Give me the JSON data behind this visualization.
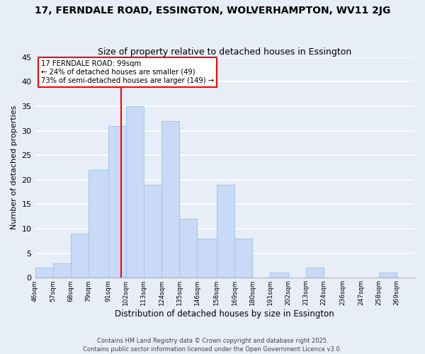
{
  "title_line1": "17, FERNDALE ROAD, ESSINGTON, WOLVERHAMPTON, WV11 2JG",
  "title_line2": "Size of property relative to detached houses in Essington",
  "xlabel": "Distribution of detached houses by size in Essington",
  "ylabel": "Number of detached properties",
  "bin_labels": [
    "46sqm",
    "57sqm",
    "68sqm",
    "79sqm",
    "91sqm",
    "102sqm",
    "113sqm",
    "124sqm",
    "135sqm",
    "146sqm",
    "158sqm",
    "169sqm",
    "180sqm",
    "191sqm",
    "202sqm",
    "213sqm",
    "224sqm",
    "236sqm",
    "247sqm",
    "258sqm",
    "269sqm"
  ],
  "bin_edges": [
    46,
    57,
    68,
    79,
    91,
    102,
    113,
    124,
    135,
    146,
    158,
    169,
    180,
    191,
    202,
    213,
    224,
    236,
    247,
    258,
    269,
    280
  ],
  "counts": [
    2,
    3,
    9,
    22,
    31,
    35,
    19,
    32,
    12,
    8,
    19,
    8,
    0,
    1,
    0,
    2,
    0,
    0,
    0,
    1,
    0
  ],
  "bar_color": "#c9daf8",
  "bar_edge_color": "#9fc5e8",
  "vline_x": 99,
  "vline_color": "red",
  "annotation_line1": "17 FERNDALE ROAD: 99sqm",
  "annotation_line2": "← 24% of detached houses are smaller (49)",
  "annotation_line3": "73% of semi-detached houses are larger (149) →",
  "ylim": [
    0,
    45
  ],
  "yticks": [
    0,
    5,
    10,
    15,
    20,
    25,
    30,
    35,
    40,
    45
  ],
  "bg_color": "#e8eef8",
  "grid_color": "#ffffff",
  "footer_line1": "Contains HM Land Registry data © Crown copyright and database right 2025.",
  "footer_line2": "Contains public sector information licensed under the Open Government Licence v3.0."
}
